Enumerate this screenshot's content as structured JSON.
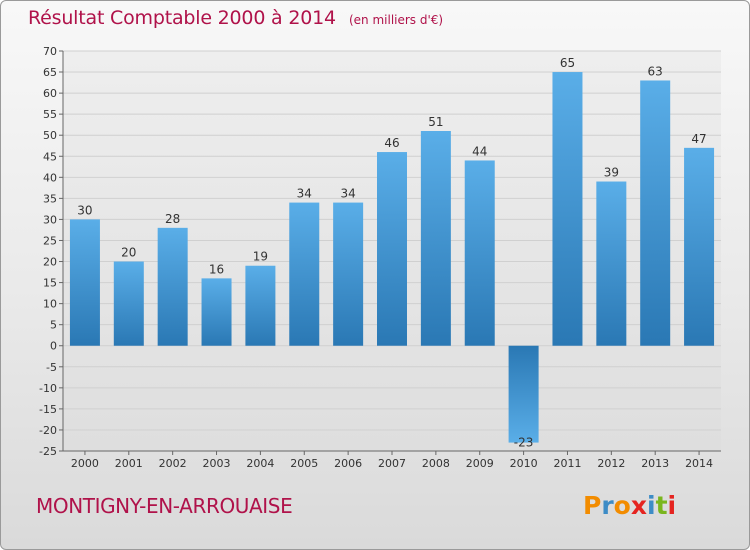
{
  "header": {
    "title": "Résultat Comptable 2000 à 2014",
    "subtitle": "(en milliers d'€)"
  },
  "footer": {
    "place": "MONTIGNY-EN-ARROUAISE",
    "logo_text": "Proxiti",
    "logo_colors": [
      "#f28c00",
      "#3d8cc6",
      "#f28c00",
      "#e52420",
      "#3d8cc6",
      "#7ab61e",
      "#e52420"
    ]
  },
  "chart_data": {
    "type": "bar",
    "title": "Résultat Comptable 2000 à 2014",
    "subtitle": "(en milliers d'€)",
    "categories": [
      "2000",
      "2001",
      "2002",
      "2003",
      "2004",
      "2005",
      "2006",
      "2007",
      "2008",
      "2009",
      "2010",
      "2011",
      "2012",
      "2013",
      "2014"
    ],
    "values": [
      30,
      20,
      28,
      16,
      19,
      34,
      34,
      46,
      51,
      44,
      -23,
      65,
      39,
      63,
      47
    ],
    "ylim": [
      -25,
      70
    ],
    "yticks": [
      70,
      65,
      60,
      55,
      50,
      45,
      40,
      35,
      30,
      25,
      20,
      15,
      10,
      5,
      0,
      -5,
      -10,
      -15,
      -20,
      -25
    ],
    "grid": true,
    "colors": {
      "bar_light": "#5aaee8",
      "bar_dark": "#2a78b4",
      "grid": "#d0d0d0",
      "plot_bg": "#e6e6e6"
    }
  }
}
